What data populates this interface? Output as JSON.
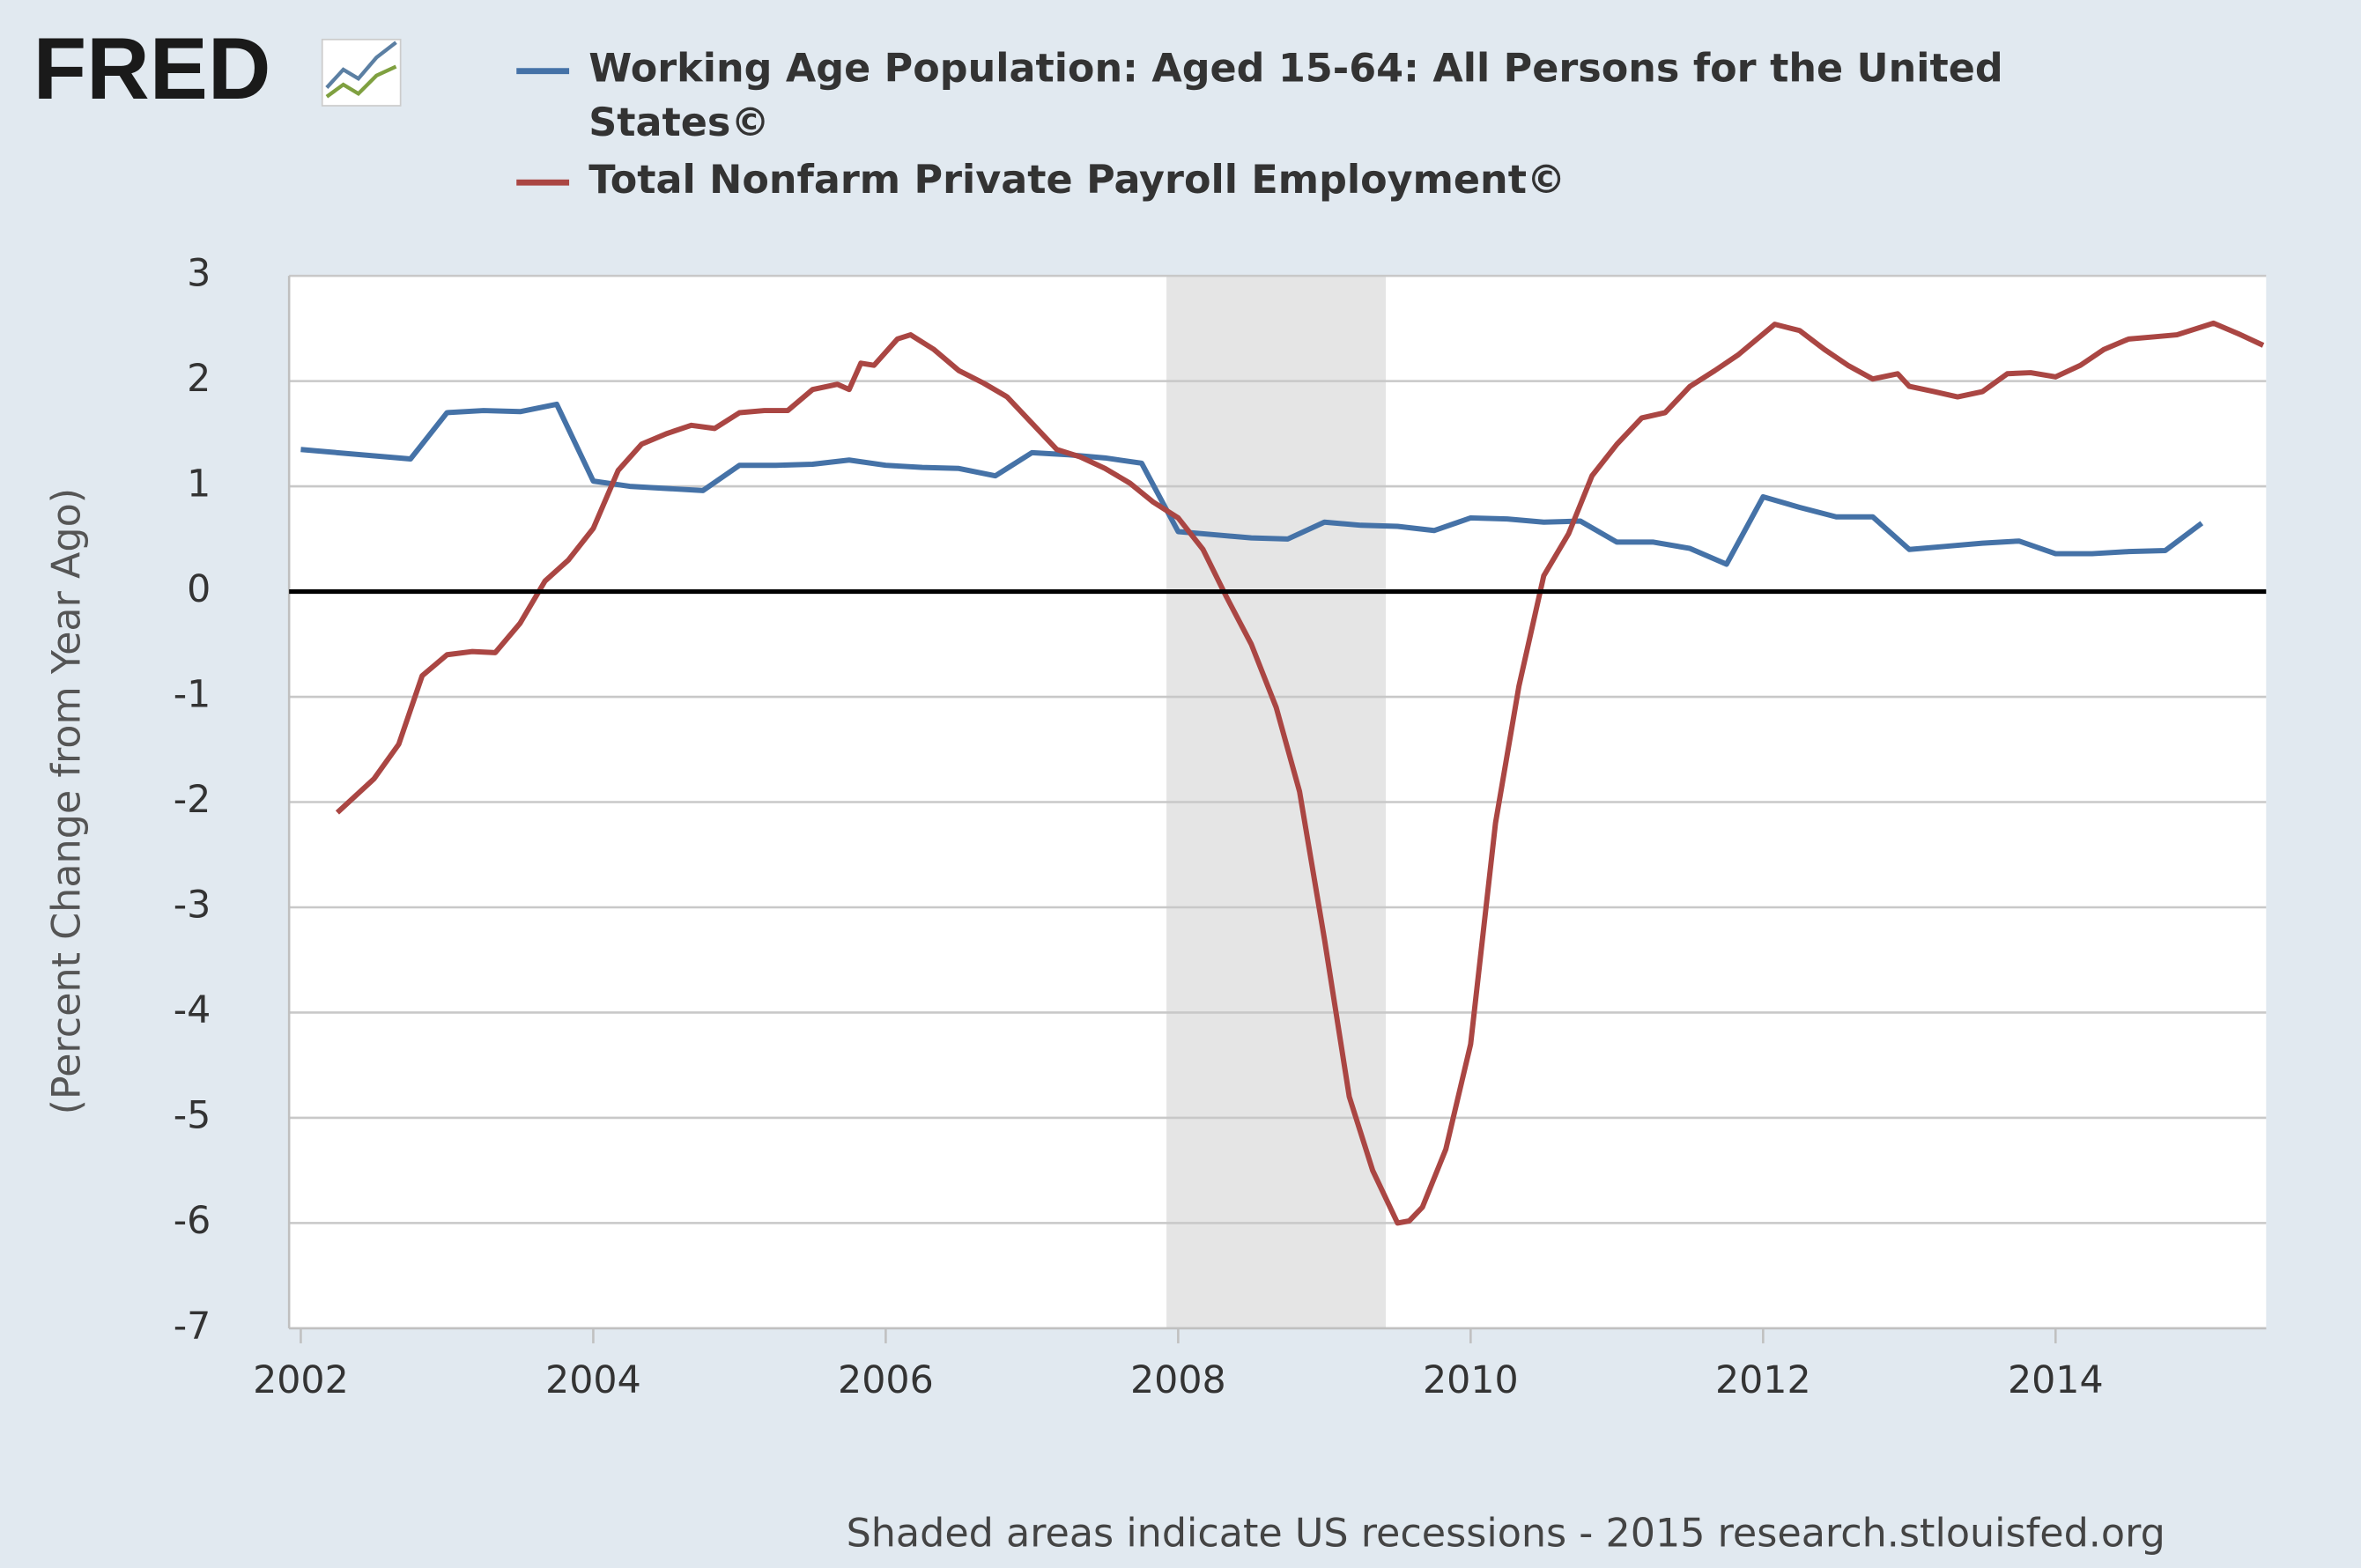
{
  "logo": "FRED",
  "chart_data": {
    "type": "line",
    "y_label": "(Percent Change from Year Ago)",
    "note": "Shaded areas indicate US recessions - 2015 research.stlouisfed.org",
    "xlim": [
      2001.92,
      2015.44
    ],
    "xticks": [
      2002,
      2004,
      2006,
      2008,
      2010,
      2012,
      2014
    ],
    "ylim": [
      -7,
      3
    ],
    "yticks": [
      3,
      2,
      1,
      0,
      -1,
      -2,
      -3,
      -4,
      -5,
      -6,
      -7
    ],
    "grid": true,
    "zero_line": true,
    "recessions": [
      [
        2007.92,
        2009.42
      ]
    ],
    "series": [
      {
        "name": "Working Age Population: Aged 15-64: All Persons for the United States©",
        "color": "#4572a7",
        "x": [
          2002.0,
          2002.75,
          2003.0,
          2003.25,
          2003.5,
          2003.75,
          2004.0,
          2004.25,
          2004.5,
          2004.75,
          2005.0,
          2005.25,
          2005.5,
          2005.75,
          2006.0,
          2006.25,
          2006.5,
          2006.75,
          2007.0,
          2007.25,
          2007.5,
          2007.75,
          2008.0,
          2008.25,
          2008.5,
          2008.75,
          2009.0,
          2009.25,
          2009.5,
          2009.75,
          2010.0,
          2010.25,
          2010.5,
          2010.75,
          2011.0,
          2011.25,
          2011.5,
          2011.75,
          2012.0,
          2012.25,
          2012.5,
          2012.75,
          2013.0,
          2013.25,
          2013.5,
          2013.75,
          2014.0,
          2014.25,
          2014.5,
          2014.75,
          2015.0
        ],
        "values": [
          1.35,
          1.26,
          1.7,
          1.72,
          1.71,
          1.78,
          1.05,
          1.0,
          0.98,
          0.96,
          1.2,
          1.2,
          1.21,
          1.25,
          1.2,
          1.18,
          1.17,
          1.1,
          1.32,
          1.3,
          1.27,
          1.22,
          0.57,
          0.54,
          0.51,
          0.5,
          0.66,
          0.63,
          0.62,
          0.58,
          0.7,
          0.69,
          0.66,
          0.67,
          0.47,
          0.47,
          0.41,
          0.26,
          0.9,
          0.8,
          0.71,
          0.71,
          0.4,
          0.43,
          0.46,
          0.48,
          0.36,
          0.36,
          0.38,
          0.39,
          0.65
        ]
      },
      {
        "name": "Total Nonfarm Private Payroll Employment©",
        "color": "#aa4643",
        "x": [
          2002.25,
          2002.5,
          2002.67,
          2002.83,
          2003.0,
          2003.17,
          2003.33,
          2003.5,
          2003.67,
          2003.83,
          2004.0,
          2004.17,
          2004.33,
          2004.5,
          2004.67,
          2004.83,
          2005.0,
          2005.17,
          2005.33,
          2005.5,
          2005.67,
          2005.75,
          2005.83,
          2005.92,
          2006.08,
          2006.17,
          2006.33,
          2006.5,
          2006.67,
          2006.83,
          2007.0,
          2007.17,
          2007.33,
          2007.5,
          2007.67,
          2007.83,
          2008.0,
          2008.17,
          2008.33,
          2008.5,
          2008.67,
          2008.83,
          2009.0,
          2009.17,
          2009.33,
          2009.5,
          2009.58,
          2009.67,
          2009.83,
          2010.0,
          2010.17,
          2010.33,
          2010.5,
          2010.67,
          2010.83,
          2011.0,
          2011.17,
          2011.33,
          2011.5,
          2011.67,
          2011.83,
          2012.08,
          2012.25,
          2012.42,
          2012.58,
          2012.75,
          2012.92,
          2013.0,
          2013.17,
          2013.33,
          2013.5,
          2013.67,
          2013.83,
          2014.0,
          2014.17,
          2014.33,
          2014.5,
          2014.67,
          2014.83,
          2015.08,
          2015.25,
          2015.42
        ],
        "values": [
          -2.1,
          -1.78,
          -1.45,
          -0.8,
          -0.6,
          -0.57,
          -0.58,
          -0.3,
          0.1,
          0.3,
          0.6,
          1.15,
          1.4,
          1.5,
          1.58,
          1.55,
          1.7,
          1.72,
          1.72,
          1.92,
          1.97,
          1.92,
          2.17,
          2.15,
          2.4,
          2.44,
          2.3,
          2.1,
          1.98,
          1.85,
          1.6,
          1.35,
          1.28,
          1.17,
          1.03,
          0.85,
          0.7,
          0.4,
          -0.05,
          -0.5,
          -1.1,
          -1.9,
          -3.3,
          -4.8,
          -5.5,
          -6.0,
          -5.98,
          -5.85,
          -5.3,
          -4.3,
          -2.2,
          -0.9,
          0.15,
          0.55,
          1.1,
          1.4,
          1.65,
          1.7,
          1.95,
          2.1,
          2.25,
          2.54,
          2.48,
          2.3,
          2.15,
          2.02,
          2.07,
          1.95,
          1.9,
          1.85,
          1.9,
          2.07,
          2.08,
          2.04,
          2.15,
          2.3,
          2.4,
          2.42,
          2.44,
          2.55,
          2.45,
          2.34
        ]
      }
    ]
  }
}
